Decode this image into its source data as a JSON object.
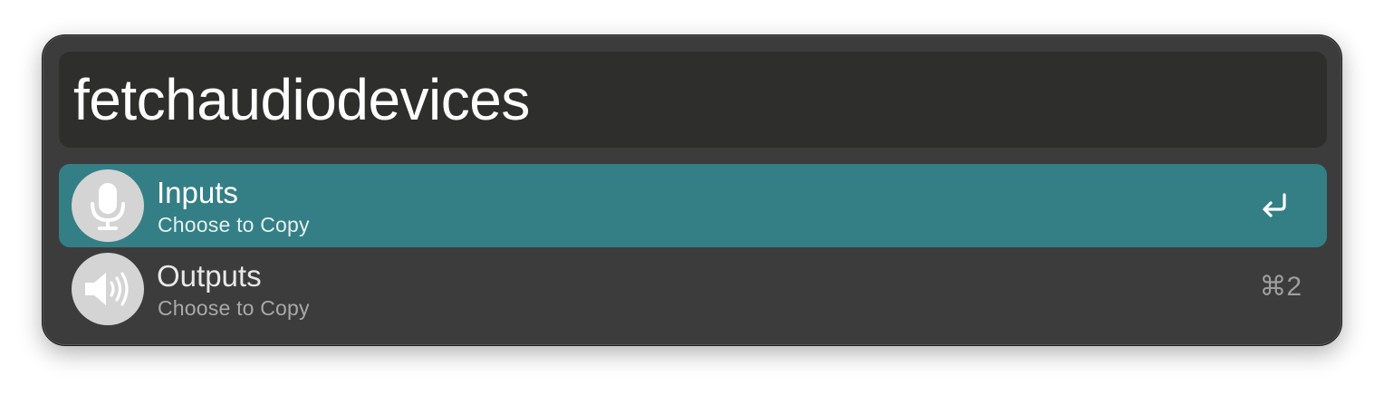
{
  "search": {
    "query": "fetchaudiodevices"
  },
  "results": [
    {
      "title": "Inputs",
      "subtitle": "Choose to Copy",
      "icon": "microphone-icon",
      "shortcut_icon": "return-icon",
      "selected": true
    },
    {
      "title": "Outputs",
      "subtitle": "Choose to Copy",
      "icon": "speaker-icon",
      "shortcut": "⌘2",
      "selected": false
    }
  ],
  "colors": {
    "window_background": "#3c3c3c",
    "search_background": "#2e2e2d",
    "selection": "#347f86",
    "icon_circle": "#d4d4d4"
  }
}
